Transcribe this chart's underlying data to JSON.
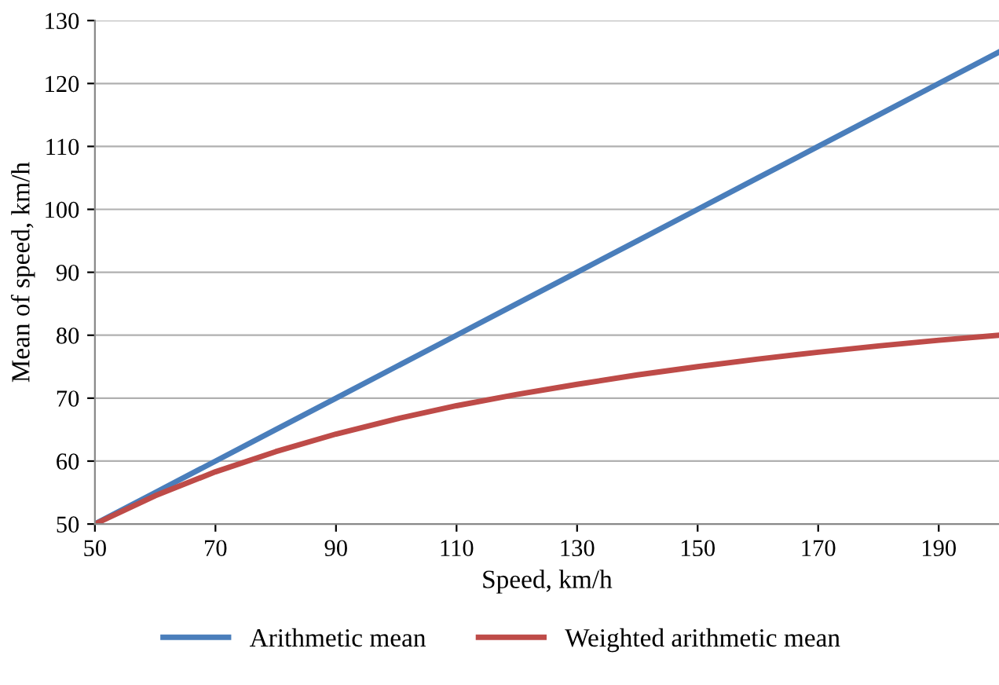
{
  "chart_data": {
    "type": "line",
    "xlabel": "Speed, km/h",
    "ylabel": "Mean of speed, km/h",
    "x": [
      50,
      60,
      70,
      80,
      90,
      100,
      110,
      120,
      130,
      140,
      150,
      160,
      170,
      180,
      190,
      200
    ],
    "series": [
      {
        "name": "Arithmetic mean",
        "color": "#4a7ebb",
        "values": [
          50,
          55,
          60,
          65,
          70,
          75,
          80,
          85,
          90,
          95,
          100,
          105,
          110,
          115,
          120,
          125
        ]
      },
      {
        "name": "Weighted arithmetic mean",
        "color": "#be4b48",
        "values": [
          50,
          54.5,
          58.3,
          61.5,
          64.3,
          66.7,
          68.8,
          70.6,
          72.2,
          73.7,
          75,
          76.2,
          77.3,
          78.3,
          79.2,
          80
        ]
      }
    ],
    "xlim": [
      50,
      200
    ],
    "xticks": [
      50,
      70,
      90,
      110,
      130,
      150,
      170,
      190
    ],
    "ylim": [
      50,
      130
    ],
    "yticks": [
      50,
      60,
      70,
      80,
      90,
      100,
      110,
      120,
      130
    ],
    "grid": "y",
    "legend": "bottom",
    "marker": "none",
    "line_style": "solid"
  }
}
